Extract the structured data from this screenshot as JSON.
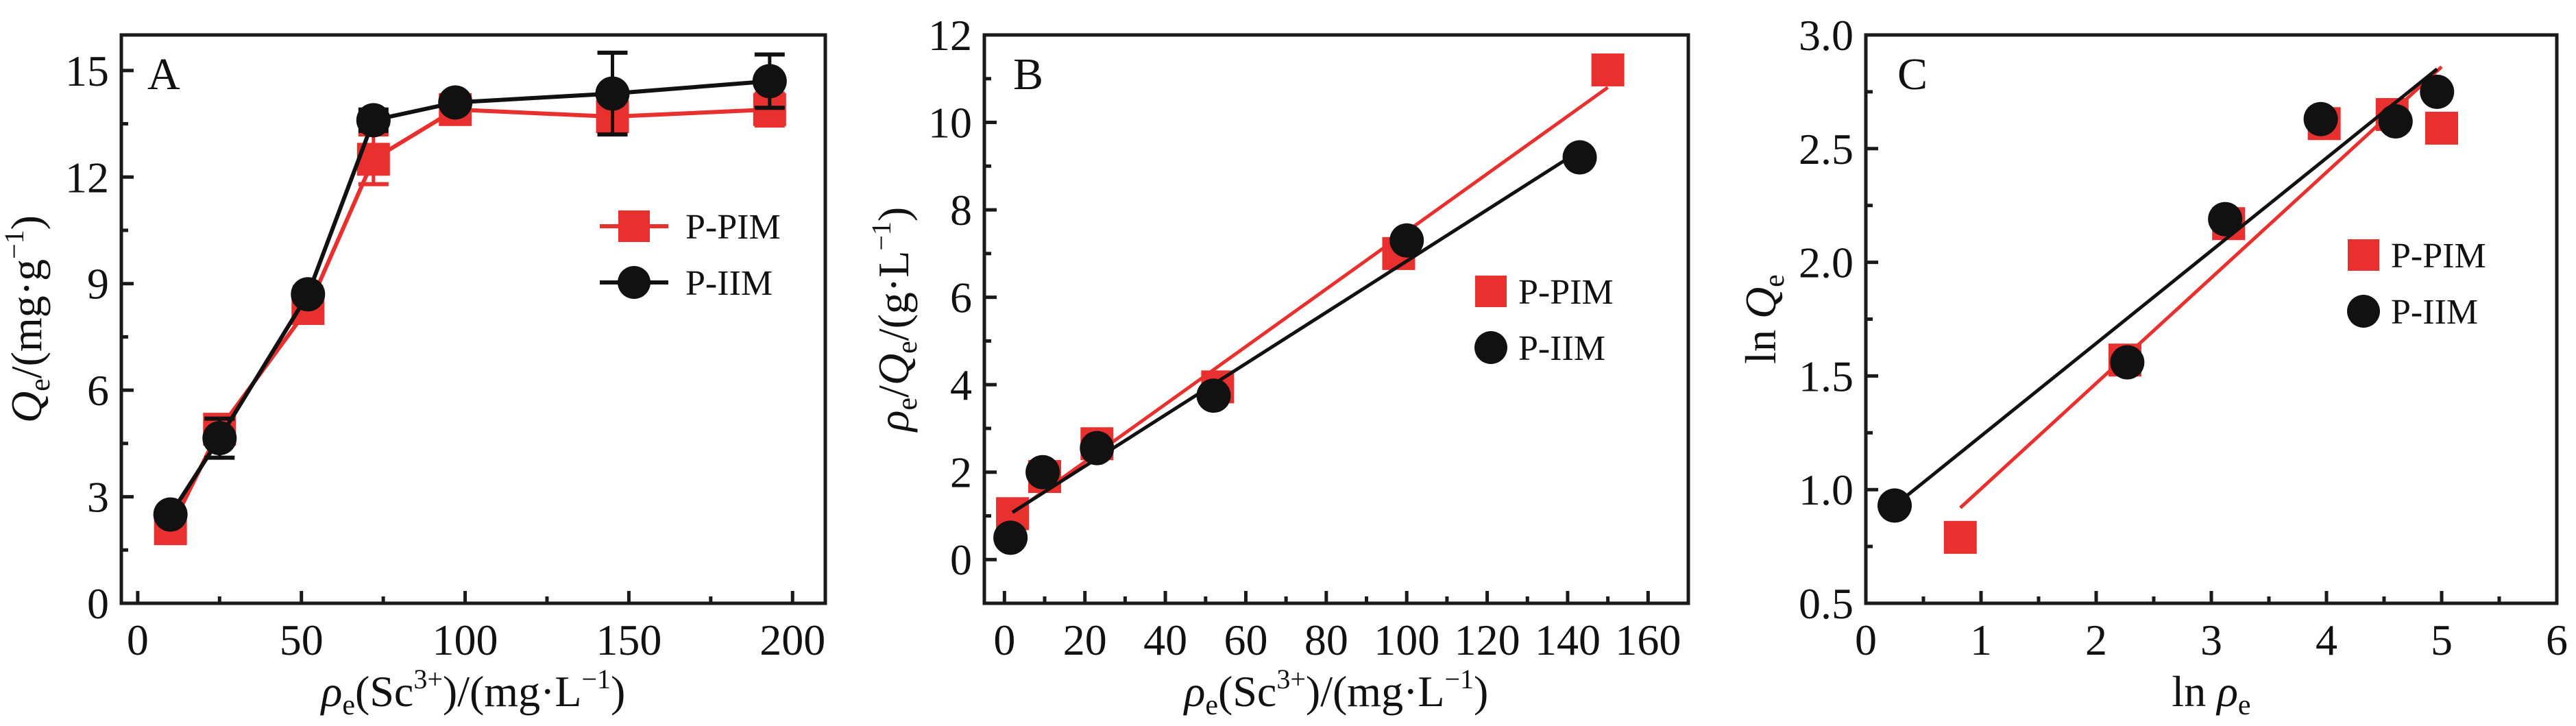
{
  "colors": {
    "pim": "#e8302e",
    "iim": "#111111",
    "axis": "#1a1a1a"
  },
  "chart_data": [
    {
      "id": "A",
      "type": "line",
      "panel_label": "A",
      "xlabel": {
        "main": "ρ",
        "sub": "e",
        "rest1": "(Sc",
        "sup": "3+",
        "rest2": ")/(mg·L",
        "sup2": "−1",
        "rest3": ")"
      },
      "ylabel": {
        "main": "Q",
        "sub": "e",
        "rest1": "/(mg·g",
        "sup": "−1",
        "rest2": ")"
      },
      "xlim": [
        -5,
        210
      ],
      "ylim": [
        0,
        16
      ],
      "xticks": [
        0,
        50,
        100,
        150,
        200
      ],
      "xminor": [
        25,
        75,
        125,
        175
      ],
      "yticks": [
        0,
        3,
        6,
        9,
        12,
        15
      ],
      "yminor": [
        1.5,
        4.5,
        7.5,
        10.5,
        13.5
      ],
      "ytick_labels": [
        "0",
        "3",
        "6",
        "9",
        "12",
        "15"
      ],
      "xtick_labels": [
        "0",
        "50",
        "100",
        "150",
        "200"
      ],
      "legend": {
        "placement": "right-middle",
        "style": "line-marker"
      },
      "series": [
        {
          "name": "P-PIM",
          "marker": "square",
          "color_key": "pim",
          "connect": true,
          "x": [
            10,
            25,
            52,
            72,
            97,
            145,
            193
          ],
          "y": [
            2.1,
            4.9,
            8.3,
            12.5,
            13.9,
            13.7,
            13.9
          ],
          "err": [
            0.1,
            0.3,
            0.35,
            0.7,
            0.4,
            0.45,
            0.45
          ]
        },
        {
          "name": "P-IIM",
          "marker": "circle",
          "color_key": "iim",
          "connect": true,
          "x": [
            10,
            25,
            52,
            72,
            97,
            145,
            193
          ],
          "y": [
            2.5,
            4.65,
            8.7,
            13.6,
            14.1,
            14.35,
            14.7
          ],
          "err": [
            0.1,
            0.55,
            0.2,
            0.3,
            0.15,
            1.15,
            0.75
          ]
        }
      ]
    },
    {
      "id": "B",
      "type": "scatter",
      "panel_label": "B",
      "xlabel": {
        "main": "ρ",
        "sub": "e",
        "rest1": "(Sc",
        "sup": "3+",
        "rest2": ")/(mg·L",
        "sup2": "−1",
        "rest3": ")"
      },
      "ylabel": {
        "main": "ρ",
        "sub": "e",
        "mid": "/Q",
        "sub2": "e",
        "rest1": "/(g·L",
        "sup": "−1",
        "rest2": ")"
      },
      "xlim": [
        -5,
        170
      ],
      "ylim": [
        -1,
        12
      ],
      "xticks": [
        0,
        20,
        40,
        60,
        80,
        100,
        120,
        140,
        160
      ],
      "xminor": [
        10,
        30,
        50,
        70,
        90,
        110,
        130,
        150
      ],
      "yticks": [
        0,
        2,
        4,
        6,
        8,
        10,
        12
      ],
      "yminor": [
        1,
        3,
        5,
        7,
        9,
        11
      ],
      "ytick_labels": [
        "0",
        "2",
        "4",
        "6",
        "8",
        "10",
        "12"
      ],
      "xtick_labels": [
        "0",
        "20",
        "40",
        "60",
        "80",
        "100",
        "120",
        "140",
        "160"
      ],
      "legend": {
        "placement": "right-middle",
        "style": "marker-only"
      },
      "series": [
        {
          "name": "P-PIM",
          "marker": "square",
          "color_key": "pim",
          "x": [
            2,
            10,
            23,
            53,
            98,
            150
          ],
          "y": [
            1.05,
            1.9,
            2.65,
            3.95,
            7.0,
            11.2
          ],
          "fit": {
            "x": [
              2,
              150
            ],
            "y": [
              1.05,
              10.8
            ]
          }
        },
        {
          "name": "P-IIM",
          "marker": "circle",
          "color_key": "iim",
          "x": [
            1.5,
            9.5,
            23,
            52,
            100,
            143
          ],
          "y": [
            0.5,
            2.0,
            2.55,
            3.75,
            7.3,
            9.2
          ],
          "fit": {
            "x": [
              2,
              143
            ],
            "y": [
              1.08,
              9.35
            ]
          }
        }
      ]
    },
    {
      "id": "C",
      "type": "scatter",
      "panel_label": "C",
      "xlabel": {
        "main": "ln ",
        "italic": "ρ",
        "sub": "e"
      },
      "ylabel": {
        "main": "ln ",
        "italic": "Q",
        "sub": "e"
      },
      "xlim": [
        0,
        6
      ],
      "ylim": [
        0.5,
        3.0
      ],
      "xticks": [
        0,
        1,
        2,
        3,
        4,
        5,
        6
      ],
      "xminor": [
        0.5,
        1.5,
        2.5,
        3.5,
        4.5,
        5.5
      ],
      "yticks": [
        0.5,
        1.0,
        1.5,
        2.0,
        2.5,
        3.0
      ],
      "yminor": [
        0.75,
        1.25,
        1.75,
        2.25,
        2.75
      ],
      "ytick_labels": [
        "0.5",
        "1.0",
        "1.5",
        "2.0",
        "2.5",
        "3.0"
      ],
      "xtick_labels": [
        "0",
        "1",
        "2",
        "3",
        "4",
        "5",
        "6"
      ],
      "legend": {
        "placement": "right-middle",
        "style": "marker-only"
      },
      "series": [
        {
          "name": "P-PIM",
          "marker": "square",
          "color_key": "pim",
          "x": [
            0.82,
            2.25,
            3.15,
            3.98,
            4.57,
            5.0
          ],
          "y": [
            0.79,
            1.57,
            2.17,
            2.61,
            2.65,
            2.59
          ],
          "fit": {
            "x": [
              0.82,
              5.0
            ],
            "y": [
              0.92,
              2.86
            ]
          }
        },
        {
          "name": "P-IIM",
          "marker": "circle",
          "color_key": "iim",
          "x": [
            0.25,
            2.27,
            3.12,
            3.95,
            4.6,
            4.96
          ],
          "y": [
            0.93,
            1.56,
            2.19,
            2.63,
            2.62,
            2.75
          ],
          "fit": {
            "x": [
              0.25,
              4.96
            ],
            "y": [
              0.93,
              2.85
            ]
          }
        }
      ]
    }
  ]
}
